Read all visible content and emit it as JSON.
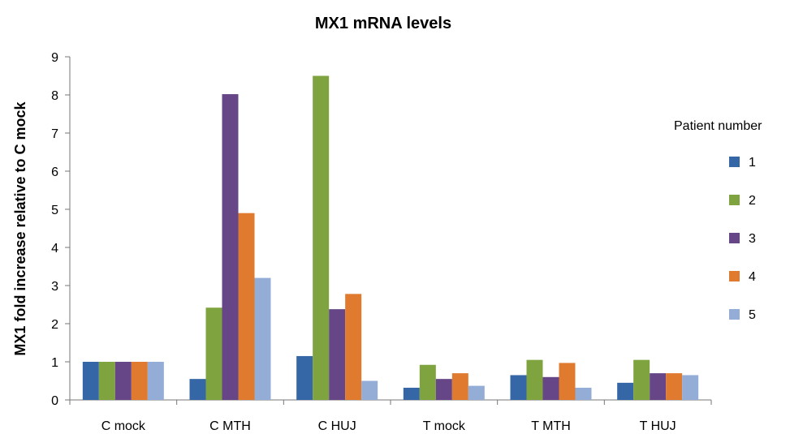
{
  "chart_data": {
    "type": "bar",
    "title": "MX1 mRNA levels",
    "xlabel": "",
    "ylabel": "MX1 fold increase relative to C mock",
    "ylim": [
      0,
      9
    ],
    "yticks": [
      "0",
      "1",
      "2",
      "3",
      "4",
      "5",
      "6",
      "7",
      "8",
      "9"
    ],
    "categories": [
      "C mock",
      "C MTH",
      "C HUJ",
      "T mock",
      "T MTH",
      "T HUJ"
    ],
    "legend_title": "Patient number",
    "legend_position": "right",
    "grid": false,
    "series": [
      {
        "name": "1",
        "color": "#3567a7",
        "values": [
          1.0,
          0.55,
          1.15,
          0.32,
          0.65,
          0.45
        ]
      },
      {
        "name": "2",
        "color": "#7fa43f",
        "values": [
          1.0,
          2.42,
          8.5,
          0.92,
          1.05,
          1.05
        ]
      },
      {
        "name": "3",
        "color": "#664687",
        "values": [
          1.0,
          8.02,
          2.38,
          0.55,
          0.6,
          0.7
        ]
      },
      {
        "name": "4",
        "color": "#df7a2f",
        "values": [
          1.0,
          4.9,
          2.78,
          0.7,
          0.97,
          0.7
        ]
      },
      {
        "name": "5",
        "color": "#93add7",
        "values": [
          1.0,
          3.2,
          0.5,
          0.37,
          0.32,
          0.65
        ]
      }
    ]
  }
}
